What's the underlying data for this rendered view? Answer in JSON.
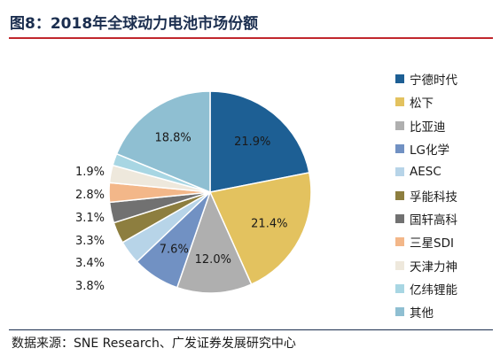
{
  "header": {
    "title": "图8：2018年全球动力电池市场份额"
  },
  "footer": {
    "source": "数据来源：SNE Research、广发证券发展研究中心"
  },
  "chart_data": {
    "type": "pie",
    "title": "图8：2018年全球动力电池市场份额",
    "legend_position": "right",
    "slices": [
      {
        "name": "宁德时代",
        "value": 21.9,
        "label": "21.9%",
        "color": "#1d5f94"
      },
      {
        "name": "松下",
        "value": 21.4,
        "label": "21.4%",
        "color": "#e3c25f"
      },
      {
        "name": "比亚迪",
        "value": 12.0,
        "label": "12.0%",
        "color": "#afafaf"
      },
      {
        "name": "LG化学",
        "value": 7.6,
        "label": "7.6%",
        "color": "#7191c3"
      },
      {
        "name": "AESC",
        "value": 3.8,
        "label": "3.8%",
        "color": "#b7d4e8"
      },
      {
        "name": "孚能科技",
        "value": 3.4,
        "label": "3.4%",
        "color": "#8d7e3f"
      },
      {
        "name": "国轩高科",
        "value": 3.3,
        "label": "3.3%",
        "color": "#717171"
      },
      {
        "name": "三星SDI",
        "value": 3.1,
        "label": "3.1%",
        "color": "#f3b789"
      },
      {
        "name": "天津力神",
        "value": 2.8,
        "label": "2.8%",
        "color": "#eee8dc"
      },
      {
        "name": "亿纬锂能",
        "value": 1.9,
        "label": "1.9%",
        "color": "#a8d6e3"
      },
      {
        "name": "其他",
        "value": 18.8,
        "label": "18.8%",
        "color": "#8fbfd2"
      }
    ]
  }
}
